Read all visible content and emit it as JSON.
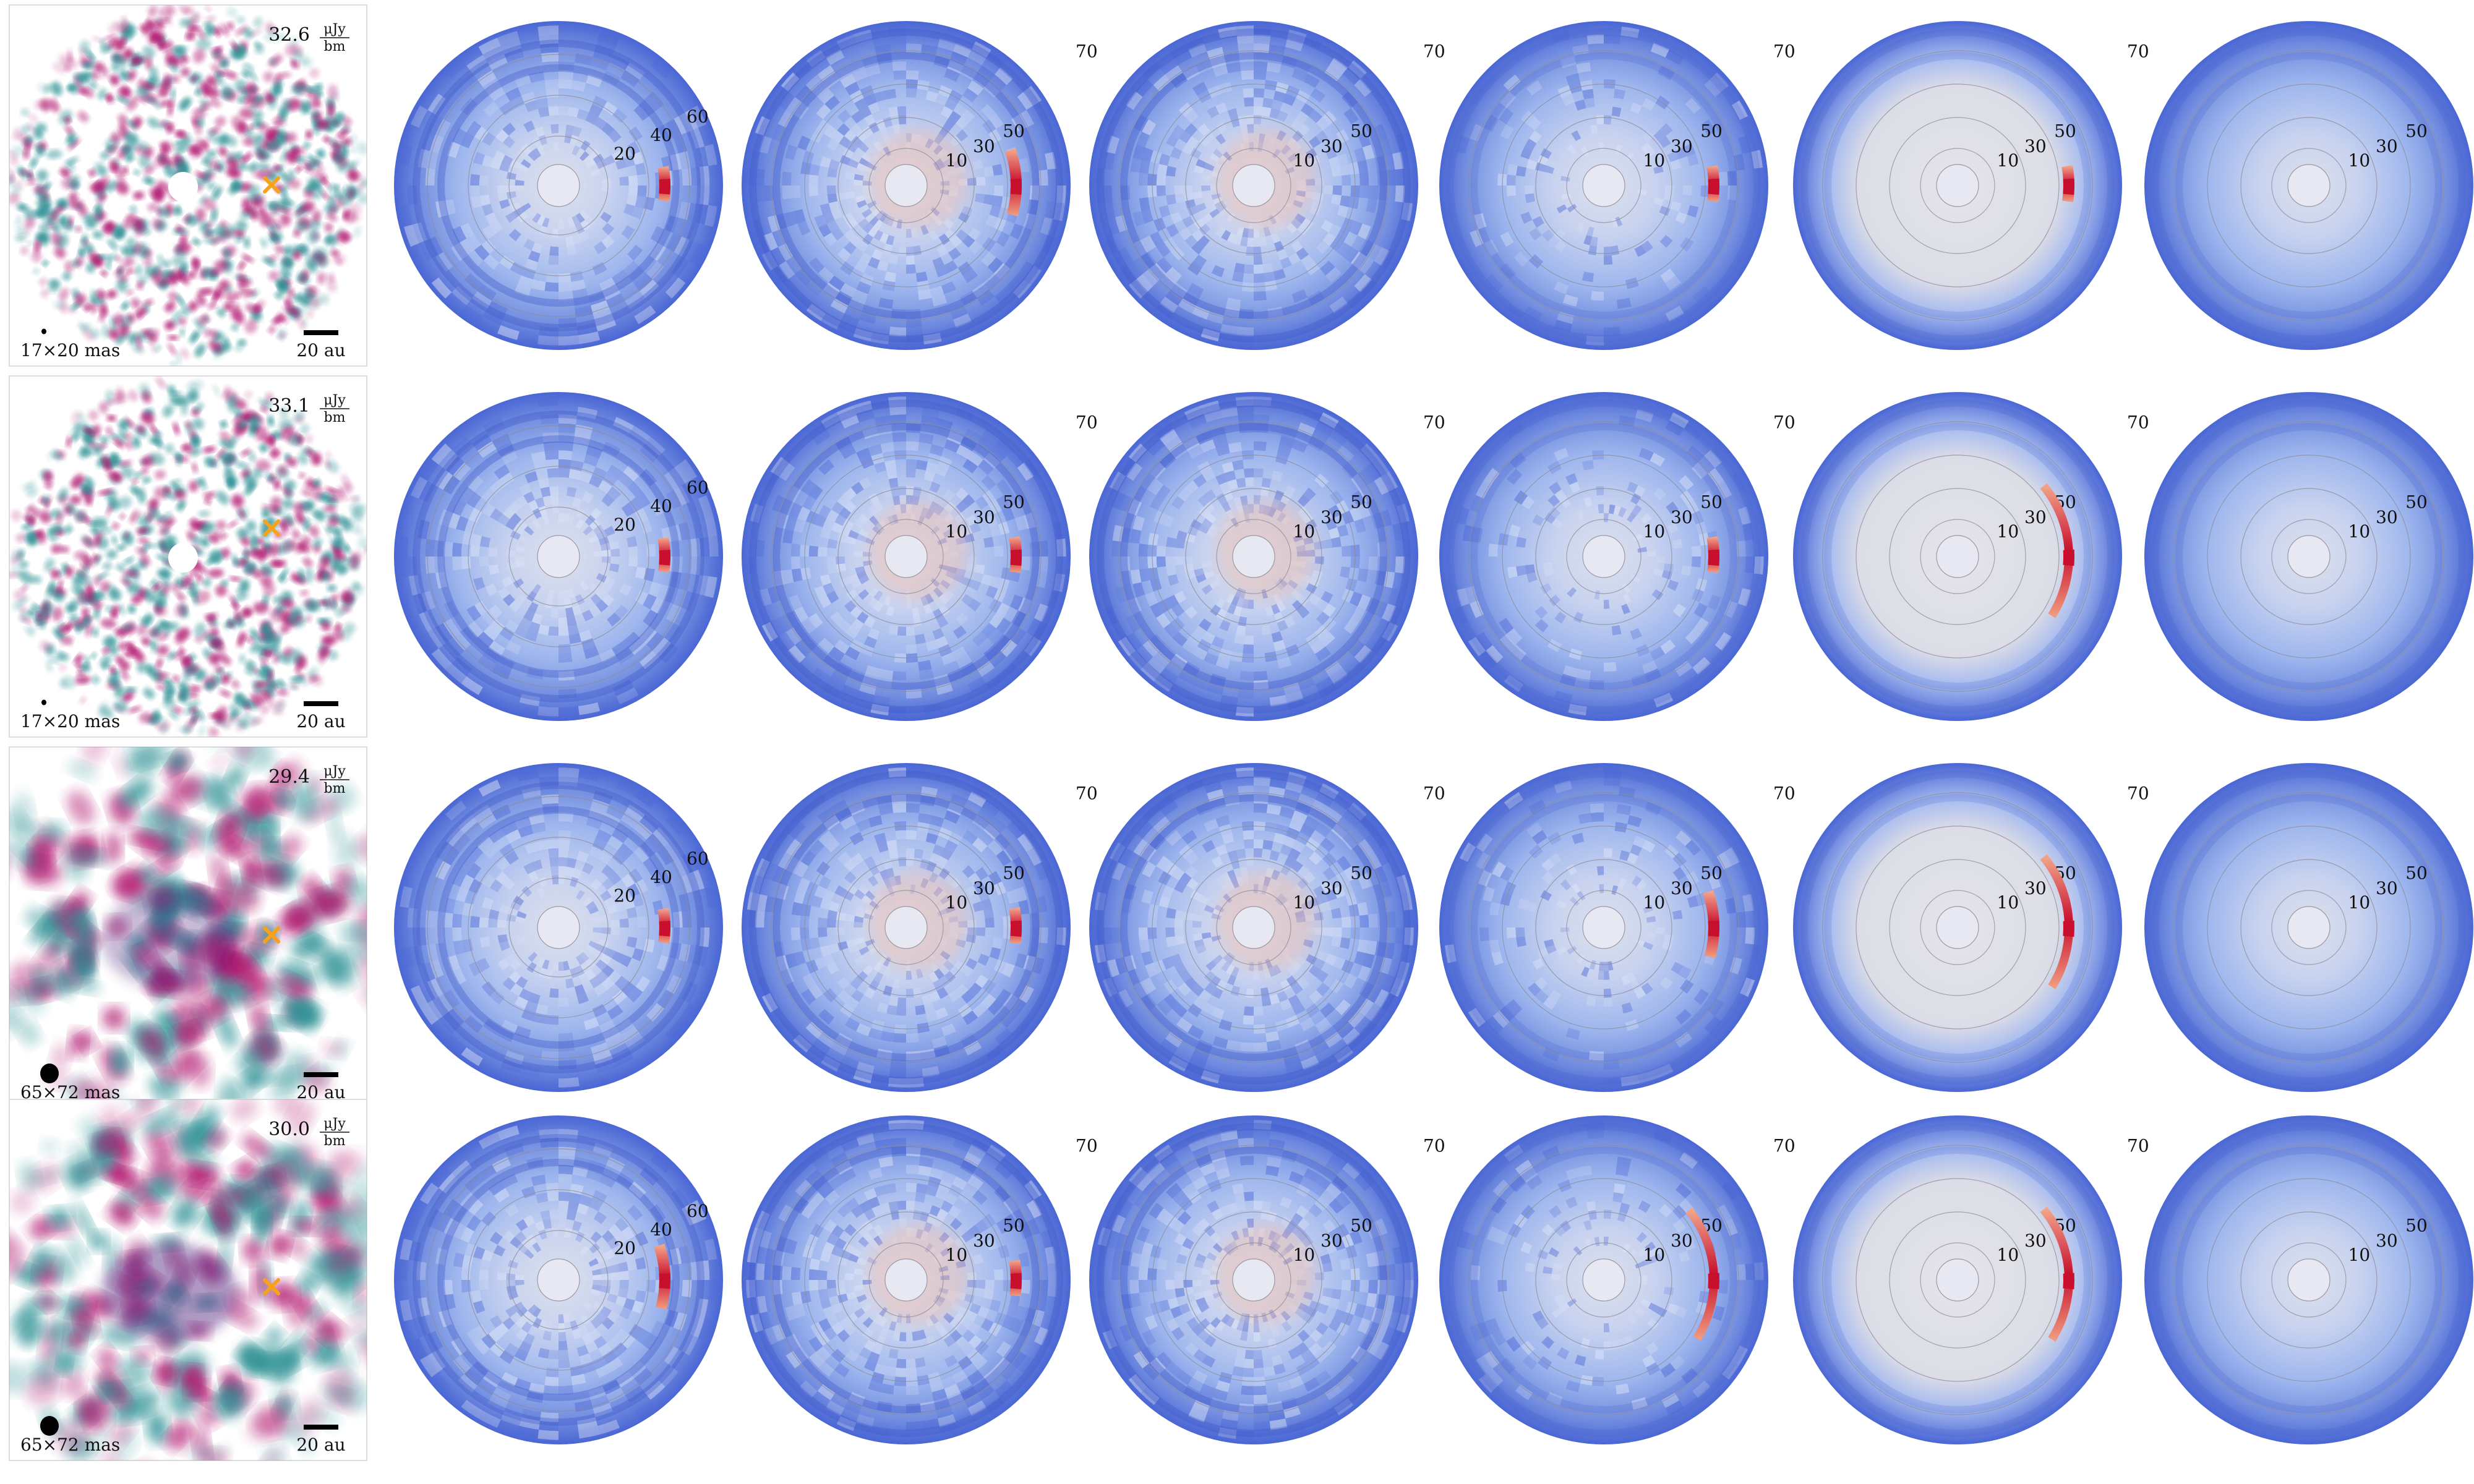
{
  "figure": {
    "rows": [
      {
        "image_panel": {
          "peak_value": "32.6",
          "unit_numerator": "μJy",
          "unit_denominator": "bm",
          "beam_label": "17×20 mas",
          "scale_label": "20 au",
          "beam": "small"
        },
        "polar_panels": [
          {
            "ring_labels": [
              "20",
              "40",
              "60"
            ],
            "signal": "arc-short"
          },
          {
            "ring_labels": [
              "10",
              "30",
              "50",
              "70"
            ],
            "signal": "arc-medium"
          },
          {
            "ring_labels": [
              "10",
              "30",
              "50",
              "70"
            ],
            "signal": "faint"
          },
          {
            "ring_labels": [
              "10",
              "30",
              "50",
              "70"
            ],
            "signal": "arc-short"
          },
          {
            "ring_labels": [
              "10",
              "30",
              "50",
              "70"
            ],
            "signal": "arc-short"
          },
          {
            "ring_labels": [
              "10",
              "30",
              "50",
              "70"
            ],
            "signal": "none"
          }
        ]
      },
      {
        "image_panel": {
          "peak_value": "33.1",
          "unit_numerator": "μJy",
          "unit_denominator": "bm",
          "beam_label": "17×20 mas",
          "scale_label": "20 au",
          "beam": "small"
        },
        "polar_panels": [
          {
            "ring_labels": [
              "20",
              "40",
              "60"
            ],
            "signal": "arc-short"
          },
          {
            "ring_labels": [
              "10",
              "30",
              "50",
              "70"
            ],
            "signal": "arc-short"
          },
          {
            "ring_labels": [
              "10",
              "30",
              "50",
              "70"
            ],
            "signal": "faint"
          },
          {
            "ring_labels": [
              "10",
              "30",
              "50",
              "70"
            ],
            "signal": "arc-short"
          },
          {
            "ring_labels": [
              "10",
              "30",
              "50",
              "70"
            ],
            "signal": "arc-long"
          },
          {
            "ring_labels": [
              "10",
              "30",
              "50",
              "70"
            ],
            "signal": "none"
          }
        ]
      },
      {
        "image_panel": {
          "peak_value": "29.4",
          "unit_numerator": "μJy",
          "unit_denominator": "bm",
          "beam_label": "65×72 mas",
          "scale_label": "20 au",
          "beam": "large"
        },
        "polar_panels": [
          {
            "ring_labels": [
              "20",
              "40",
              "60"
            ],
            "signal": "arc-short"
          },
          {
            "ring_labels": [
              "10",
              "30",
              "50",
              "70"
            ],
            "signal": "arc-short"
          },
          {
            "ring_labels": [
              "10",
              "30",
              "50",
              "70"
            ],
            "signal": "faint"
          },
          {
            "ring_labels": [
              "10",
              "30",
              "50",
              "70"
            ],
            "signal": "arc-medium"
          },
          {
            "ring_labels": [
              "10",
              "30",
              "50",
              "70"
            ],
            "signal": "arc-long"
          },
          {
            "ring_labels": [
              "10",
              "30",
              "50",
              "70"
            ],
            "signal": "none"
          }
        ]
      },
      {
        "image_panel": {
          "peak_value": "30.0",
          "unit_numerator": "μJy",
          "unit_denominator": "bm",
          "beam_label": "65×72 mas",
          "scale_label": "20 au",
          "beam": "large"
        },
        "polar_panels": [
          {
            "ring_labels": [
              "20",
              "40",
              "60"
            ],
            "signal": "arc-medium"
          },
          {
            "ring_labels": [
              "10",
              "30",
              "50",
              "70"
            ],
            "signal": "arc-short"
          },
          {
            "ring_labels": [
              "10",
              "30",
              "50",
              "70"
            ],
            "signal": "faint"
          },
          {
            "ring_labels": [
              "10",
              "30",
              "50",
              "70"
            ],
            "signal": "arc-long"
          },
          {
            "ring_labels": [
              "10",
              "30",
              "50",
              "70"
            ],
            "signal": "arc-long"
          },
          {
            "ring_labels": [
              "10",
              "30",
              "50",
              "70"
            ],
            "signal": "none"
          }
        ]
      }
    ],
    "colors": {
      "disk_outer": "#4a66d4",
      "disk_mid": "#9fb7ee",
      "disk_inner": "#dde1ec",
      "center_hole": "#e8e8f2",
      "arc_signal": "#c8102e",
      "image_magenta": "#b0126e",
      "image_teal": "#2a8f93",
      "marker": "#f7a21b"
    },
    "icons": {
      "marker": "cross-marker-icon",
      "beam": "beam-ellipse-icon",
      "scale": "scale-bar-icon"
    }
  }
}
